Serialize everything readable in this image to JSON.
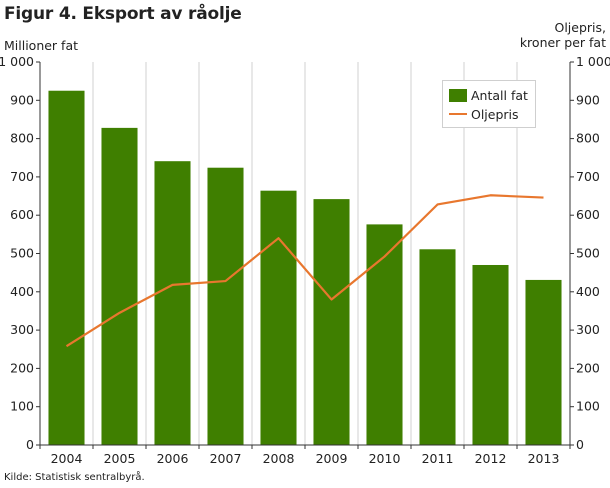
{
  "title": "Figur 4. Eksport av råolje",
  "left_axis_label": "Millioner fat",
  "right_axis_label_line1": "Oljepris,",
  "right_axis_label_line2": "kroner per fat",
  "source": "Kilde: Statistisk sentralbyrå.",
  "legend": {
    "bar_label": "Antall fat",
    "line_label": "Oljepris"
  },
  "colors": {
    "bar": "#3f7f00",
    "line": "#e8772e",
    "grid": "#d0d0d0"
  },
  "chart_data": {
    "type": "bar",
    "categories": [
      "2004",
      "2005",
      "2006",
      "2007",
      "2008",
      "2009",
      "2010",
      "2011",
      "2012",
      "2013"
    ],
    "series": [
      {
        "name": "Antall fat",
        "type": "bar",
        "axis": "left",
        "values": [
          925,
          828,
          741,
          724,
          664,
          642,
          576,
          511,
          470,
          431
        ]
      },
      {
        "name": "Oljepris",
        "type": "line",
        "axis": "right",
        "values": [
          258,
          345,
          418,
          428,
          540,
          380,
          492,
          628,
          652,
          646
        ]
      }
    ],
    "ylim": [
      0,
      1000
    ],
    "y2lim": [
      0,
      1000
    ],
    "yticks": [
      "0",
      "100",
      "200",
      "300",
      "400",
      "500",
      "600",
      "700",
      "800",
      "900",
      "1 000"
    ],
    "y2ticks": [
      "0",
      "100",
      "200",
      "300",
      "400",
      "500",
      "600",
      "700",
      "800",
      "900",
      "1 000"
    ],
    "grid": "vertical",
    "legend_position": "top-right"
  }
}
